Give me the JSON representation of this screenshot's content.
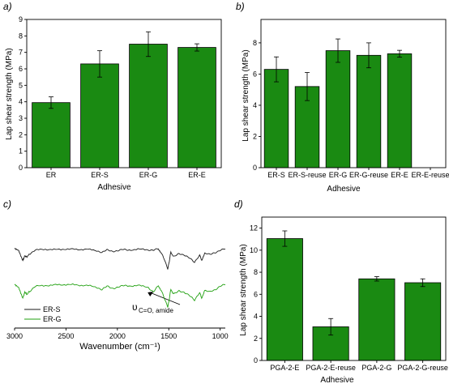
{
  "colors": {
    "bar": "#1a8a12",
    "trace_ers": "#1a1a1a",
    "trace_erg": "#20a010"
  },
  "chart_data": [
    {
      "panel": "a)",
      "type": "bar",
      "categories": [
        "ER",
        "ER-S",
        "ER-G",
        "ER-E"
      ],
      "values": [
        3.95,
        6.3,
        7.5,
        7.3
      ],
      "errors": [
        0.35,
        0.8,
        0.75,
        0.22
      ],
      "xlabel": "Adhesive",
      "ylabel": "Lap shear strength (MPa)",
      "ylim": [
        0,
        9
      ],
      "yticks": [
        0,
        1,
        2,
        3,
        4,
        5,
        6,
        7,
        8,
        9
      ]
    },
    {
      "panel": "b)",
      "type": "bar",
      "categories": [
        "ER-S",
        "ER-S-reuse",
        "ER-G",
        "ER-G-reuse",
        "ER-E",
        "ER-E-reuse"
      ],
      "values": [
        6.3,
        5.2,
        7.5,
        7.2,
        7.3,
        0
      ],
      "errors": [
        0.8,
        0.9,
        0.75,
        0.8,
        0.22,
        0
      ],
      "xlabel": "Adhesive",
      "ylabel": "Lap shear strength (MPa)",
      "ylim": [
        0,
        9.5
      ],
      "yticks": [
        0,
        2,
        4,
        6,
        8
      ]
    },
    {
      "panel": "c)",
      "type": "line",
      "xlabel": "Wavenumber (cm⁻¹)",
      "xlim": [
        3000,
        950
      ],
      "xticks": [
        3000,
        2500,
        2000,
        1500,
        1000
      ],
      "annotation": {
        "label": "υ",
        "subscript": "C=O, amide",
        "x": 1650
      },
      "series": [
        {
          "name": "ER-S",
          "color": "#1a1a1a",
          "x": [
            3000,
            2960,
            2920,
            2900,
            2880,
            2850,
            2800,
            2700,
            2600,
            2500,
            2400,
            2300,
            2200,
            2150,
            2100,
            2050,
            2000,
            1950,
            1900,
            1800,
            1700,
            1650,
            1600,
            1560,
            1510,
            1480,
            1450,
            1400,
            1350,
            1300,
            1250,
            1200,
            1180,
            1150,
            1100,
            1050,
            1000,
            950
          ],
          "y": [
            0.05,
            0.12,
            0.55,
            0.35,
            0.4,
            0.25,
            0.1,
            0.06,
            0.08,
            0.05,
            0.07,
            0.06,
            0.12,
            0.2,
            0.1,
            0.15,
            0.12,
            0.08,
            0.1,
            0.06,
            0.08,
            0.1,
            0.05,
            0.3,
            0.95,
            0.2,
            0.4,
            0.25,
            0.3,
            0.45,
            0.65,
            0.3,
            0.55,
            0.25,
            0.3,
            0.2,
            0.1,
            0.05
          ]
        },
        {
          "name": "ER-G",
          "color": "#20a010",
          "x": [
            3000,
            2960,
            2920,
            2900,
            2880,
            2850,
            2800,
            2700,
            2600,
            2500,
            2400,
            2300,
            2200,
            2150,
            2100,
            2050,
            2000,
            1950,
            1900,
            1800,
            1700,
            1650,
            1600,
            1560,
            1510,
            1480,
            1450,
            1400,
            1350,
            1300,
            1250,
            1200,
            1180,
            1150,
            1100,
            1050,
            1000,
            950
          ],
          "y": [
            0.05,
            0.15,
            0.6,
            0.35,
            0.45,
            0.3,
            0.12,
            0.08,
            0.06,
            0.04,
            0.06,
            0.08,
            0.15,
            0.25,
            0.12,
            0.2,
            0.15,
            0.1,
            0.1,
            0.08,
            0.15,
            0.35,
            0.1,
            0.4,
            1.0,
            0.25,
            0.45,
            0.3,
            0.35,
            0.5,
            0.7,
            0.35,
            0.6,
            0.3,
            0.35,
            0.25,
            0.1,
            0.05
          ]
        }
      ]
    },
    {
      "panel": "d)",
      "type": "bar",
      "categories": [
        "PGA-2-E",
        "PGA-2-E-reuse",
        "PGA-2-G",
        "PGA-2-G-reuse"
      ],
      "values": [
        11.05,
        3.05,
        7.4,
        7.05
      ],
      "errors": [
        0.7,
        0.75,
        0.2,
        0.35
      ],
      "xlabel": "Adhesive",
      "ylabel": "Lap shear strength (MPa)",
      "ylim": [
        0,
        13
      ],
      "yticks": [
        0,
        2,
        4,
        6,
        8,
        10,
        12
      ]
    }
  ]
}
